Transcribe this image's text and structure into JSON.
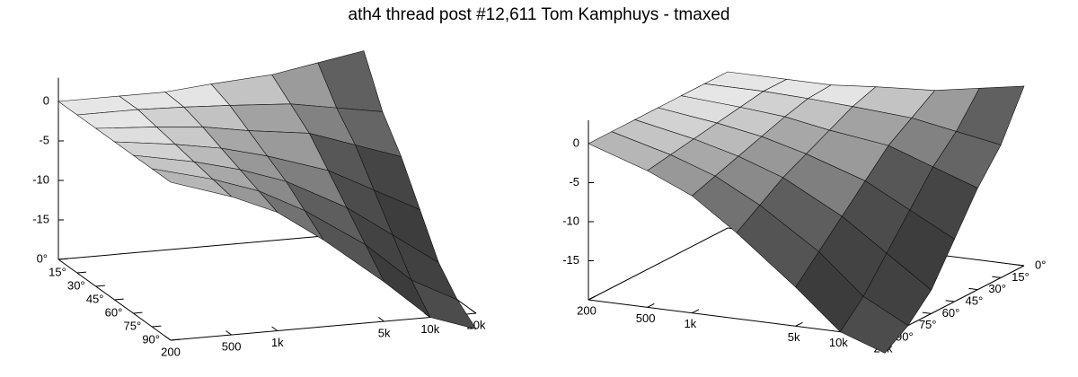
{
  "title": "ath4 thread post #12,611 Tom Kamphuys - tmaxed",
  "chart_data": [
    {
      "type": "surface",
      "log_x": true,
      "x": [
        200,
        500,
        1000,
        2000,
        5000,
        10000,
        20000
      ],
      "y": [
        0,
        15,
        30,
        45,
        60,
        75,
        90
      ],
      "z": [
        [
          0,
          0,
          0,
          0.5,
          1,
          2,
          3
        ],
        [
          0,
          0,
          -0.2,
          -0.5,
          -1,
          -2,
          -3
        ],
        [
          0,
          -0.5,
          -1,
          -2,
          -3,
          -5,
          -7
        ],
        [
          0,
          -1,
          -2,
          -3.5,
          -6,
          -9,
          -12
        ],
        [
          0,
          -1.5,
          -3,
          -5,
          -9,
          -13,
          -17
        ],
        [
          0,
          -2,
          -4,
          -7,
          -12,
          -17,
          -20
        ],
        [
          0,
          -2.5,
          -5,
          -9,
          -15,
          -20,
          -22
        ]
      ],
      "xlim": [
        200,
        20000
      ],
      "ylim": [
        0,
        90
      ],
      "zlim": [
        -20,
        3
      ],
      "xticks": [
        200,
        500,
        {
          "value": 1000,
          "label": "1k"
        },
        {
          "value": 5000,
          "label": "5k"
        },
        {
          "value": 10000,
          "label": "10k"
        },
        {
          "value": 20000,
          "label": "20k"
        }
      ],
      "yticks": [
        {
          "value": 0,
          "label": "0°"
        },
        {
          "value": 15,
          "label": "15°"
        },
        {
          "value": 30,
          "label": "30°"
        },
        {
          "value": 45,
          "label": "45°"
        },
        {
          "value": 60,
          "label": "60°"
        },
        {
          "value": 75,
          "label": "75°"
        },
        {
          "value": 90,
          "label": "90°"
        }
      ],
      "zticks": [
        0,
        -5,
        -10,
        -15
      ]
    },
    {
      "type": "surface",
      "log_x": true,
      "x": [
        200,
        500,
        1000,
        2000,
        5000,
        10000,
        20000
      ],
      "y": [
        0,
        15,
        30,
        45,
        60,
        75,
        90
      ],
      "z": [
        [
          0,
          0,
          0,
          0.5,
          1,
          2,
          3
        ],
        [
          0,
          0,
          -0.2,
          -0.5,
          -1,
          -2,
          -3
        ],
        [
          0,
          -0.5,
          -1,
          -2,
          -3,
          -5,
          -7
        ],
        [
          0,
          -1,
          -2,
          -3.5,
          -6,
          -9,
          -12
        ],
        [
          0,
          -1.5,
          -3,
          -5,
          -9,
          -13,
          -17
        ],
        [
          0,
          -2,
          -4,
          -7,
          -12,
          -17,
          -20
        ],
        [
          0,
          -2.5,
          -5,
          -9,
          -15,
          -20,
          -22
        ]
      ],
      "xlim": [
        200,
        20000
      ],
      "ylim": [
        0,
        90
      ],
      "zlim": [
        -20,
        3
      ],
      "xticks": [
        200,
        500,
        {
          "value": 1000,
          "label": "1k"
        },
        {
          "value": 5000,
          "label": "5k"
        },
        {
          "value": 10000,
          "label": "10k"
        },
        {
          "value": 20000,
          "label": "20k"
        }
      ],
      "yticks": [
        {
          "value": 0,
          "label": "0°"
        },
        {
          "value": 15,
          "label": "15°"
        },
        {
          "value": 30,
          "label": "30°"
        },
        {
          "value": 45,
          "label": "45°"
        },
        {
          "value": 60,
          "label": "60°"
        },
        {
          "value": 75,
          "label": "75°"
        },
        {
          "value": 90,
          "label": "90°"
        }
      ],
      "zticks": [
        0,
        -5,
        -10,
        -15
      ]
    }
  ]
}
